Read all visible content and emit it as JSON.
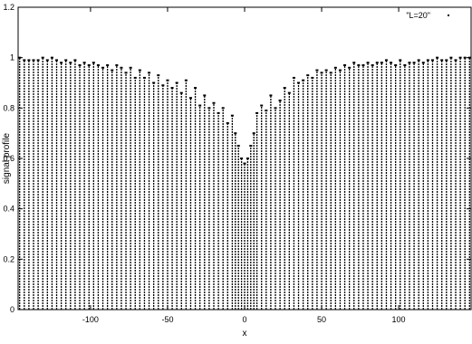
{
  "chart_data": {
    "type": "bar",
    "xlabel": "x",
    "ylabel": "signal profile",
    "xlim": [
      -147,
      147
    ],
    "ylim": [
      0,
      1.2
    ],
    "xticks": [
      -100,
      -50,
      0,
      50,
      100
    ],
    "yticks": [
      0,
      0.2,
      0.4,
      0.6,
      0.8,
      1,
      1.2
    ],
    "xtick_labels": [
      "-100",
      "-50",
      "0",
      "50",
      "100"
    ],
    "ytick_labels": [
      "0",
      "0.2",
      "0.4",
      "0.6",
      "0.8",
      "1",
      "1.2"
    ],
    "grid": false,
    "legend_position": "top-right",
    "series": [
      {
        "name": "\"L=20\"",
        "color": "#000000",
        "style": "impulses",
        "x": [
          -146,
          -143,
          -140,
          -137,
          -134,
          -131,
          -128,
          -125,
          -122,
          -119,
          -116,
          -113,
          -110,
          -107,
          -104,
          -101,
          -98,
          -95,
          -92,
          -89,
          -86,
          -83,
          -80,
          -77,
          -74,
          -71,
          -68,
          -65,
          -62,
          -59,
          -56,
          -53,
          -50,
          -47,
          -44,
          -41,
          -38,
          -35,
          -32,
          -29,
          -26,
          -23,
          -20,
          -17,
          -14,
          -11,
          -8,
          -6,
          -4,
          -2,
          0,
          2,
          4,
          6,
          8,
          11,
          14,
          17,
          20,
          23,
          26,
          29,
          32,
          35,
          38,
          41,
          44,
          47,
          50,
          53,
          56,
          59,
          62,
          65,
          68,
          71,
          74,
          77,
          80,
          83,
          86,
          89,
          92,
          95,
          98,
          101,
          104,
          107,
          110,
          113,
          116,
          119,
          122,
          125,
          128,
          131,
          134,
          137,
          140,
          143,
          146
        ],
        "values": [
          1.0,
          0.99,
          0.99,
          0.99,
          0.99,
          1.0,
          0.99,
          1.0,
          0.99,
          0.98,
          0.99,
          0.98,
          0.99,
          0.97,
          0.98,
          0.97,
          0.98,
          0.97,
          0.96,
          0.97,
          0.95,
          0.97,
          0.96,
          0.94,
          0.96,
          0.92,
          0.95,
          0.92,
          0.94,
          0.9,
          0.93,
          0.89,
          0.91,
          0.88,
          0.9,
          0.86,
          0.91,
          0.84,
          0.88,
          0.81,
          0.85,
          0.8,
          0.82,
          0.78,
          0.8,
          0.74,
          0.77,
          0.7,
          0.65,
          0.6,
          0.58,
          0.6,
          0.65,
          0.7,
          0.78,
          0.81,
          0.79,
          0.85,
          0.8,
          0.83,
          0.88,
          0.86,
          0.92,
          0.9,
          0.91,
          0.93,
          0.92,
          0.95,
          0.94,
          0.95,
          0.94,
          0.96,
          0.95,
          0.97,
          0.96,
          0.98,
          0.97,
          0.97,
          0.98,
          0.97,
          0.98,
          0.98,
          0.99,
          0.98,
          0.97,
          0.99,
          0.97,
          0.98,
          0.98,
          0.99,
          0.98,
          0.99,
          0.99,
          1.0,
          0.99,
          0.99,
          1.0,
          0.99,
          1.0,
          1.0,
          1.0
        ]
      }
    ]
  }
}
